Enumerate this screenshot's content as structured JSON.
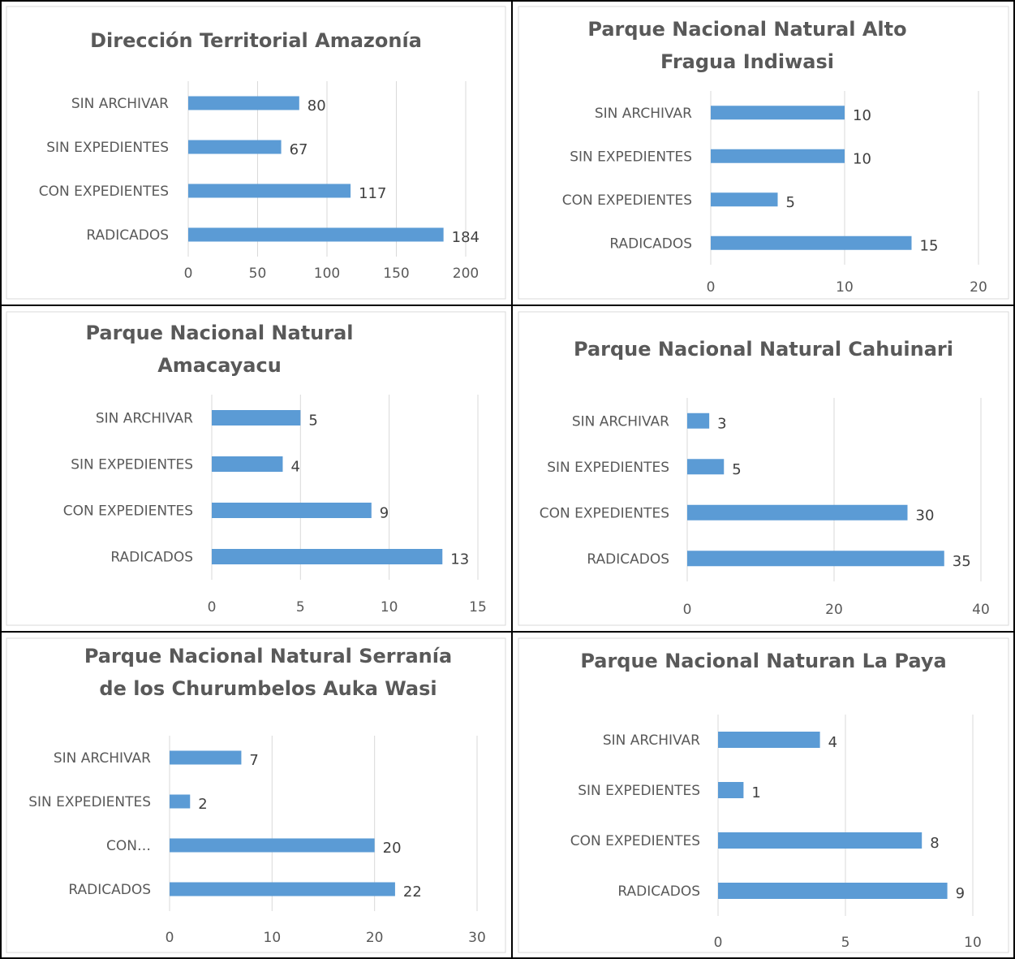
{
  "chart_data": [
    {
      "type": "bar",
      "orientation": "horizontal",
      "title": [
        "Dirección Territorial Amazonía"
      ],
      "categories": [
        "SIN ARCHIVAR",
        "SIN EXPEDIENTES",
        "CON EXPEDIENTES",
        "RADICADOS"
      ],
      "values": [
        80,
        67,
        117,
        184
      ],
      "xlim": [
        0,
        200
      ],
      "ticks": [
        0,
        50,
        100,
        150,
        200
      ],
      "grid": true,
      "color": "#5b9bd5"
    },
    {
      "type": "bar",
      "orientation": "horizontal",
      "title": [
        "Parque Nacional Natural Alto",
        "Fragua Indiwasi"
      ],
      "categories": [
        "SIN ARCHIVAR",
        "SIN EXPEDIENTES",
        "CON EXPEDIENTES",
        "RADICADOS"
      ],
      "values": [
        10,
        10,
        5,
        15
      ],
      "xlim": [
        0,
        20
      ],
      "ticks": [
        0,
        10,
        20
      ],
      "grid": true,
      "color": "#5b9bd5"
    },
    {
      "type": "bar",
      "orientation": "horizontal",
      "title": [
        "Parque Nacional Natural",
        "Amacayacu"
      ],
      "categories": [
        "SIN ARCHIVAR",
        "SIN EXPEDIENTES",
        "CON EXPEDIENTES",
        "RADICADOS"
      ],
      "values": [
        5,
        4,
        9,
        13
      ],
      "xlim": [
        0,
        15
      ],
      "ticks": [
        0,
        5,
        10,
        15
      ],
      "grid": true,
      "color": "#5b9bd5"
    },
    {
      "type": "bar",
      "orientation": "horizontal",
      "title": [
        "Parque Nacional Natural Cahuinari"
      ],
      "categories": [
        "SIN ARCHIVAR",
        "SIN EXPEDIENTES",
        "CON EXPEDIENTES",
        "RADICADOS"
      ],
      "values": [
        3,
        5,
        30,
        35
      ],
      "xlim": [
        0,
        40
      ],
      "ticks": [
        0,
        20,
        40
      ],
      "grid": true,
      "color": "#5b9bd5"
    },
    {
      "type": "bar",
      "orientation": "horizontal",
      "title": [
        "Parque Nacional Natural Serranía",
        "de los Churumbelos Auka Wasi"
      ],
      "categories": [
        "SIN ARCHIVAR",
        "SIN EXPEDIENTES",
        "CON…",
        "RADICADOS"
      ],
      "values": [
        7,
        2,
        20,
        22
      ],
      "xlim": [
        0,
        30
      ],
      "ticks": [
        0,
        10,
        20,
        30
      ],
      "grid": true,
      "color": "#5b9bd5"
    },
    {
      "type": "bar",
      "orientation": "horizontal",
      "title": [
        "Parque Nacional Naturan La Paya"
      ],
      "categories": [
        "SIN ARCHIVAR",
        "SIN EXPEDIENTES",
        "CON EXPEDIENTES",
        "RADICADOS"
      ],
      "values": [
        4,
        1,
        8,
        9
      ],
      "xlim": [
        0,
        10
      ],
      "ticks": [
        0,
        5,
        10
      ],
      "grid": true,
      "color": "#5b9bd5"
    }
  ]
}
